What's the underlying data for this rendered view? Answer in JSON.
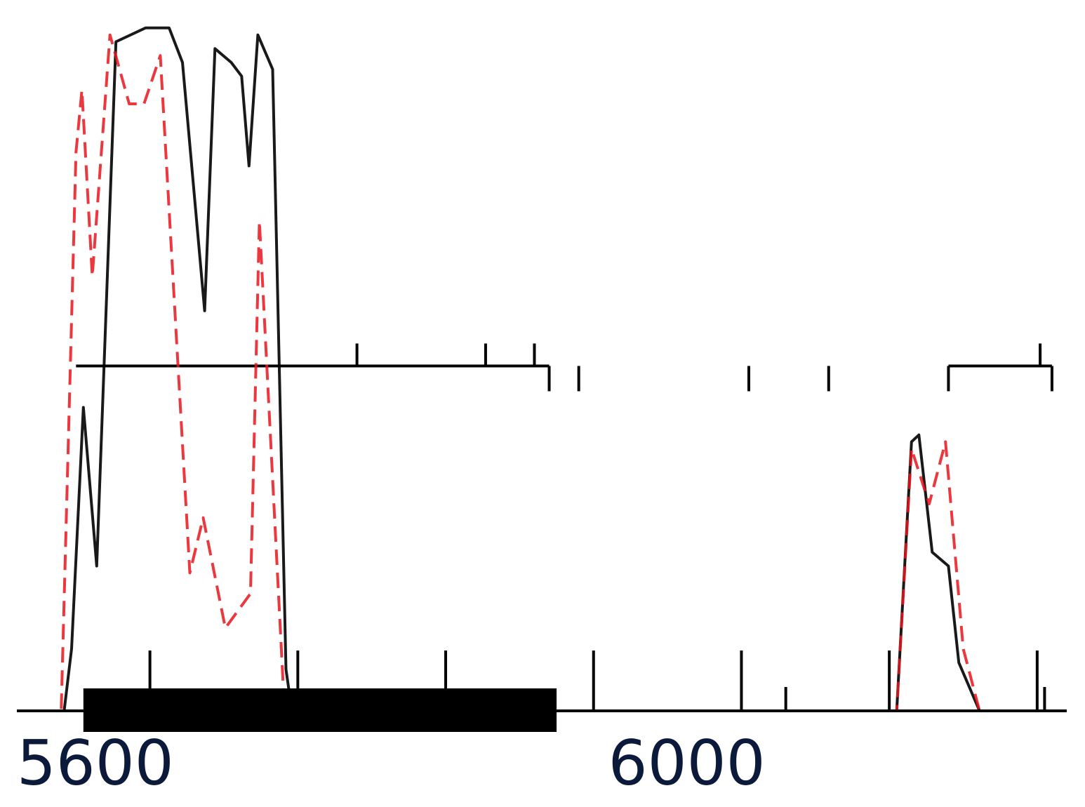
{
  "chart_data": {
    "type": "line",
    "title": "",
    "xlabel": "",
    "ylabel": "",
    "xlim": [
      5555,
      6265
    ],
    "ylim": [
      0,
      1
    ],
    "grid": false,
    "legend": "none",
    "x_tick_labels": [
      "5600",
      "6000"
    ],
    "x_tick_values": [
      5600,
      6000
    ],
    "series": [
      {
        "style": "solid",
        "color": "#000000",
        "points": [
          [
            5555,
            0
          ],
          [
            5587,
            0
          ],
          [
            5592,
            0.09
          ],
          [
            5600,
            0.44
          ],
          [
            5609,
            0.21
          ],
          [
            5622,
            0.97
          ],
          [
            5642,
            0.99
          ],
          [
            5658,
            0.99
          ],
          [
            5667,
            0.94
          ],
          [
            5682,
            0.58
          ],
          [
            5689,
            0.96
          ],
          [
            5700,
            0.94
          ],
          [
            5707,
            0.92
          ],
          [
            5712,
            0.79
          ],
          [
            5718,
            0.98
          ],
          [
            5728,
            0.93
          ],
          [
            5737,
            0.06
          ],
          [
            5741,
            0
          ],
          [
            6150,
            0
          ],
          [
            6160,
            0.39
          ],
          [
            6165,
            0.4
          ],
          [
            6174,
            0.23
          ],
          [
            6185,
            0.21
          ],
          [
            6192,
            0.07
          ],
          [
            6206,
            0
          ],
          [
            6265,
            0
          ]
        ]
      },
      {
        "style": "dashed",
        "color": "#e8141b",
        "points": [
          [
            5555,
            0
          ],
          [
            5585,
            0
          ],
          [
            5595,
            0.81
          ],
          [
            5599,
            0.9
          ],
          [
            5606,
            0.63
          ],
          [
            5618,
            0.98
          ],
          [
            5631,
            0.88
          ],
          [
            5641,
            0.88
          ],
          [
            5652,
            0.95
          ],
          [
            5672,
            0.2
          ],
          [
            5681,
            0.28
          ],
          [
            5696,
            0.12
          ],
          [
            5713,
            0.17
          ],
          [
            5719,
            0.71
          ],
          [
            5736,
            0
          ],
          [
            6150,
            0
          ],
          [
            6160,
            0.38
          ],
          [
            6172,
            0.3
          ],
          [
            6183,
            0.39
          ],
          [
            6195,
            0.09
          ],
          [
            6206,
            0
          ],
          [
            6265,
            0
          ]
        ]
      }
    ],
    "feature_bar": {
      "start": 5600,
      "end": 5920
    },
    "lower_ticks": {
      "major": [
        5645,
        5745,
        5845,
        5945,
        6045,
        6145,
        6245
      ],
      "minor": [
        6075,
        6250
      ]
    },
    "upper_track": {
      "baseline": 0.5,
      "segments": [
        [
          5595,
          5915
        ],
        [
          6185,
          6255
        ]
      ],
      "ticks_up": [
        5785,
        5872,
        5905
      ],
      "ticks_down": [
        5915,
        5935,
        6050,
        6104,
        6185,
        6255
      ],
      "ticks_major": [
        6247
      ]
    }
  }
}
